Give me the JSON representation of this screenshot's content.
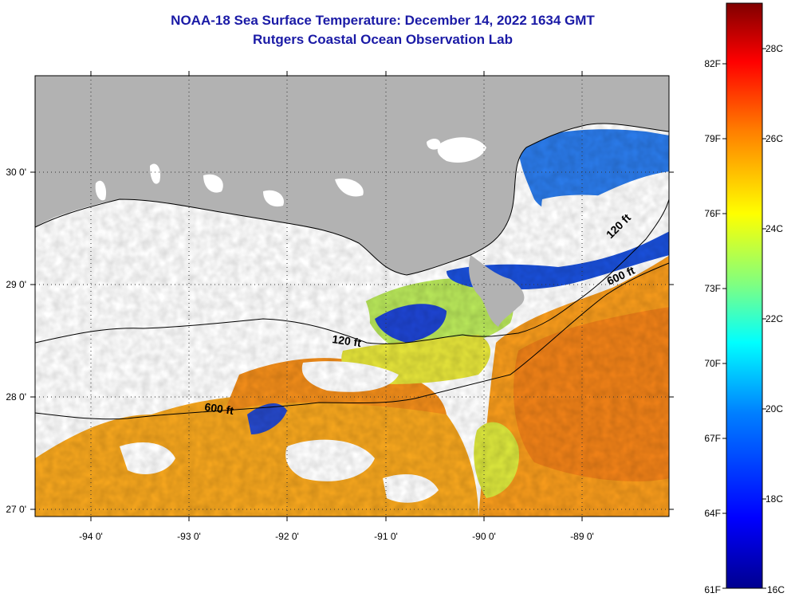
{
  "title": "NOAA-18 Sea Surface Temperature:  December 14, 2022 1634 GMT",
  "subtitle": "Rutgers Coastal Ocean Observation Lab",
  "map": {
    "lon_labels": [
      "-94 0'",
      "-93 0'",
      "-92 0'",
      "-91 0'",
      "-90 0'",
      "-89 0'"
    ],
    "lat_labels": [
      "30 0'",
      "29 0'",
      "28 0'",
      "27 0'"
    ],
    "contour_labels": {
      "c120_west": "120 ft",
      "c120_east": "120 ft",
      "c600_west": "600 ft",
      "c600_east": "600 ft"
    },
    "colors": {
      "land": "#b2b2b2",
      "cloud": "#ffffff",
      "contour": "#000000",
      "grid": "#000000"
    }
  },
  "colorbar": {
    "fahrenheit_labels": [
      "82F",
      "79F",
      "76F",
      "73F",
      "70F",
      "67F",
      "64F",
      "61F"
    ],
    "celsius_labels": [
      "28C",
      "26C",
      "24C",
      "22C",
      "20C",
      "18C",
      "16C"
    ],
    "stops": [
      "#00008f",
      "#0000ff",
      "#0080ff",
      "#00ffff",
      "#80ff80",
      "#ffff00",
      "#ff8000",
      "#ff0000",
      "#800000"
    ]
  }
}
